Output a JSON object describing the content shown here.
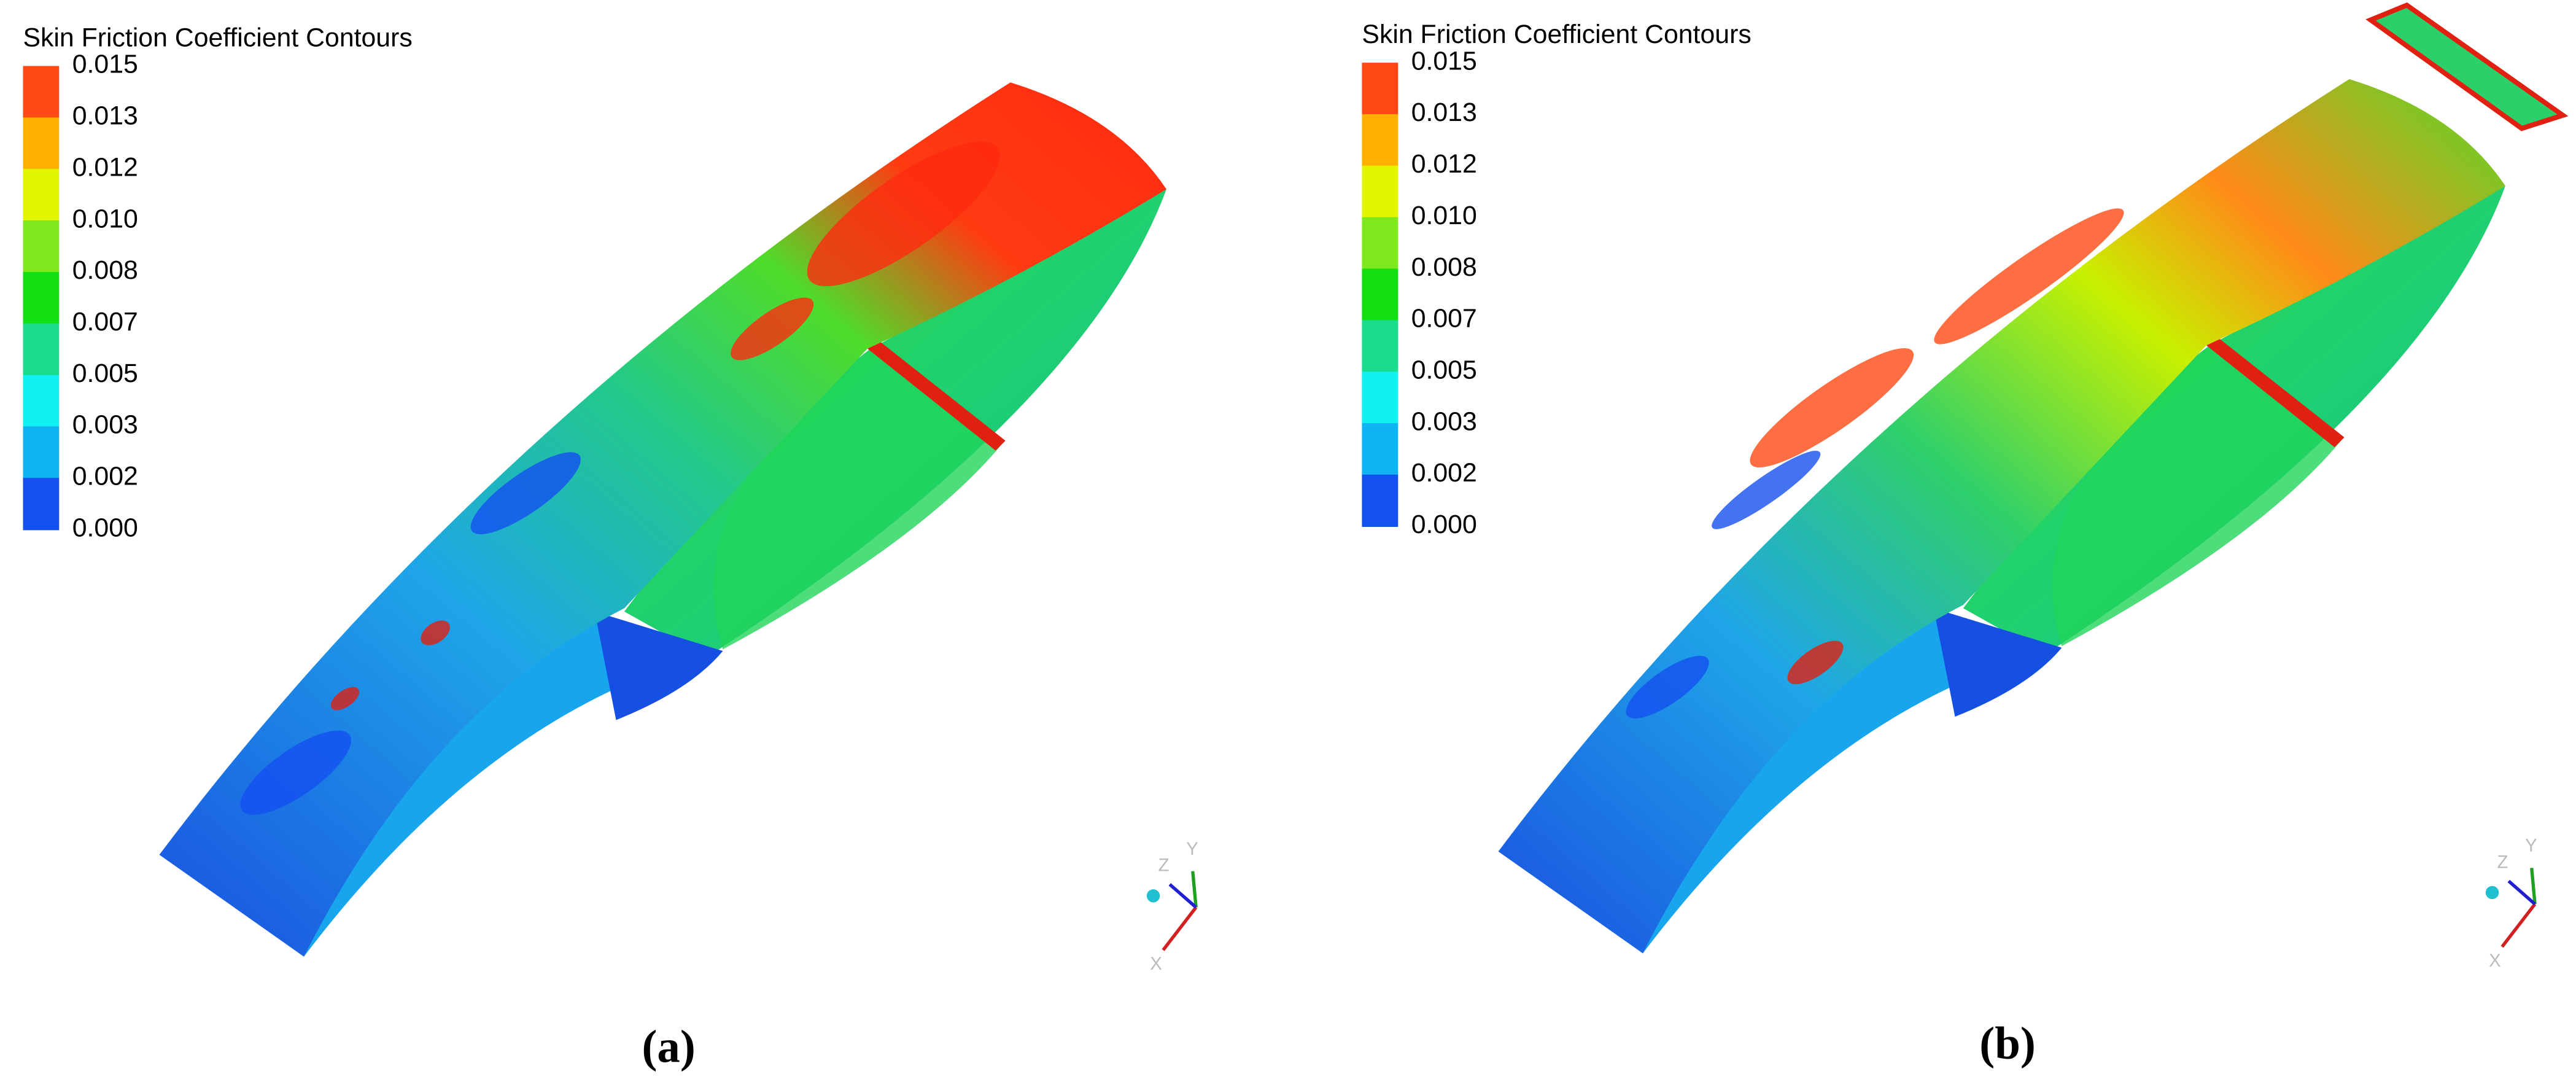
{
  "panels": [
    {
      "title": "Skin Friction Coefficient Contours",
      "legend": [
        "0.015",
        "0.013",
        "0.012",
        "0.010",
        "0.008",
        "0.007",
        "0.005",
        "0.003",
        "0.002",
        "0.000"
      ],
      "axes": [
        "X",
        "Y",
        "Z"
      ],
      "caption": "(a)"
    },
    {
      "title": "Skin Friction Coefficient Contours",
      "legend": [
        "0.015",
        "0.013",
        "0.012",
        "0.010",
        "0.008",
        "0.007",
        "0.005",
        "0.003",
        "0.002",
        "0.000"
      ],
      "axes": [
        "X",
        "Y",
        "Z"
      ],
      "caption": "(b)"
    }
  ]
}
